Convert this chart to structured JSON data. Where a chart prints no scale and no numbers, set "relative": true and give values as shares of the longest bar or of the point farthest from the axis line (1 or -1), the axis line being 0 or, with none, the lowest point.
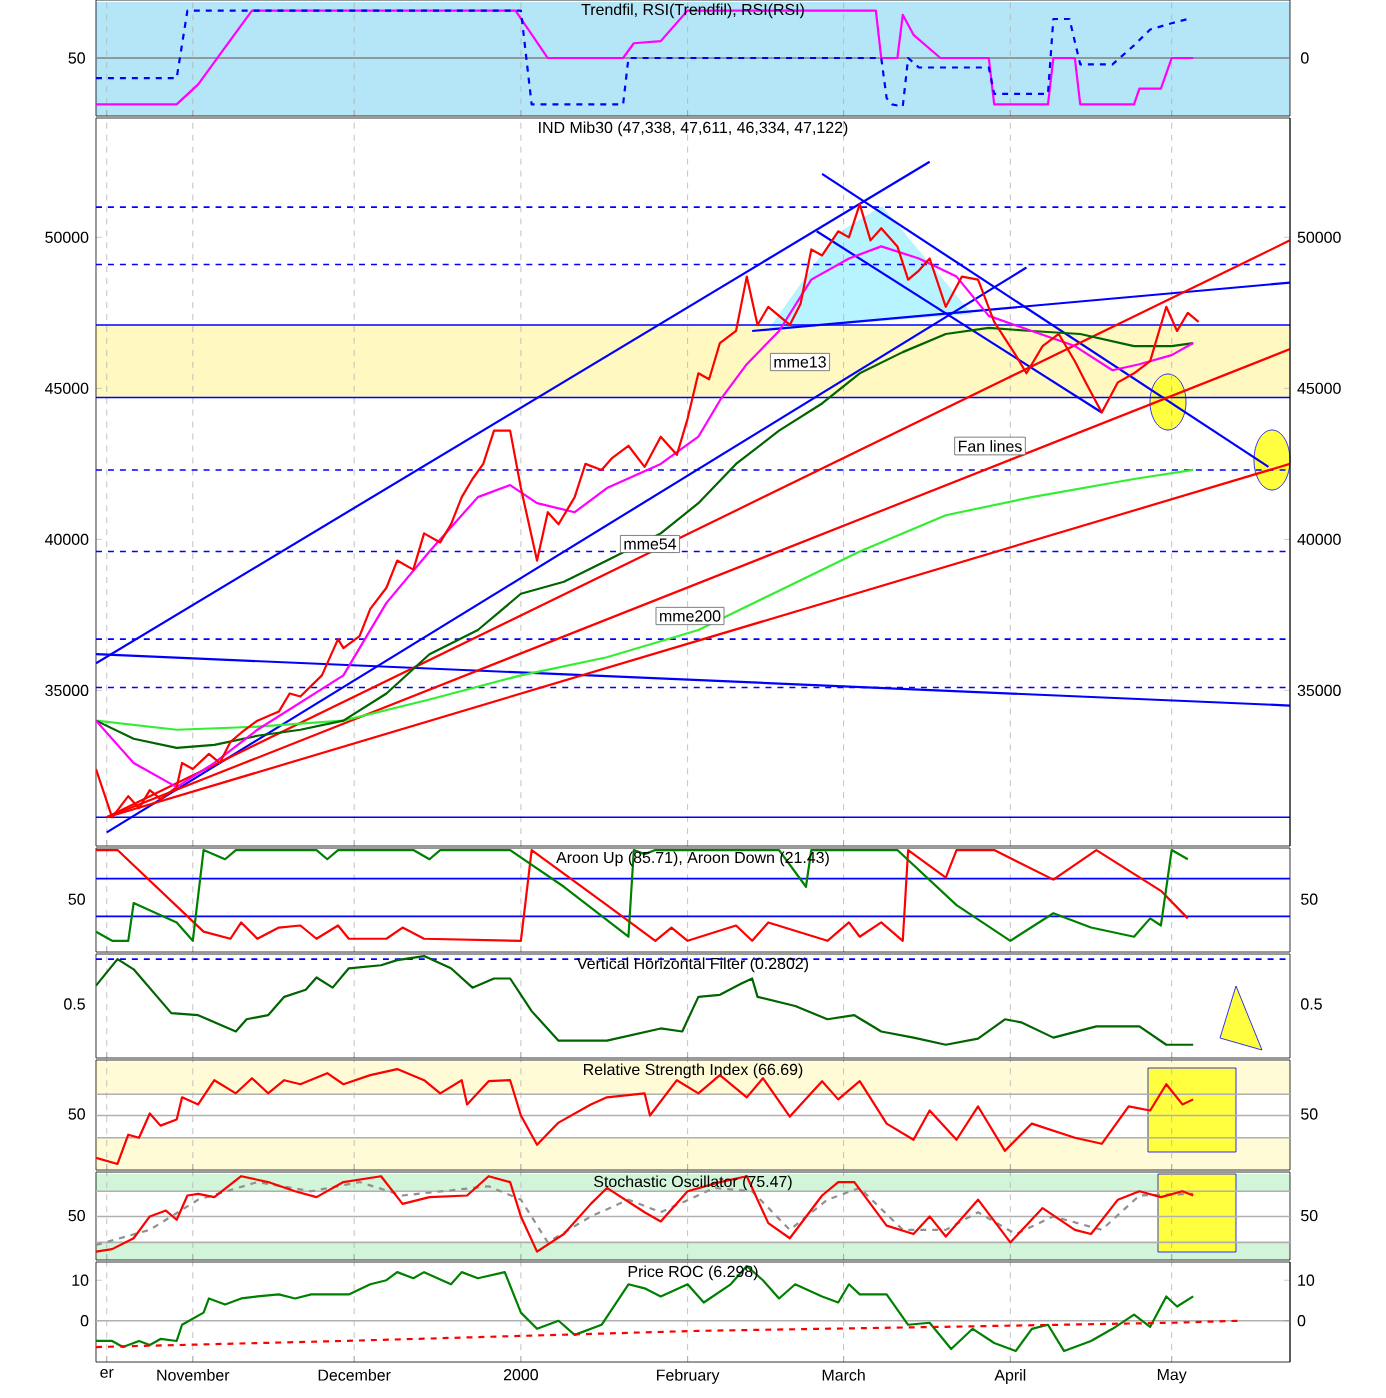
{
  "chart_data": [
    {
      "type": "line",
      "title": "Trendfil, RSI(Trendfil), RSI(RSI)",
      "relative": true,
      "tick_labels": false,
      "grid": "x",
      "xlim": [
        "1999-10-14",
        "2000-05-23"
      ],
      "xticks": [
        {
          "value": "1999-10-16",
          "label": null
        },
        {
          "value": "1999-11-01",
          "label": null
        },
        {
          "value": "1999-12-01",
          "label": null
        },
        {
          "value": "2000-01-01",
          "label": null
        },
        {
          "value": "2000-02-01",
          "label": null
        },
        {
          "value": "2000-03-01",
          "label": null
        },
        {
          "value": "2000-04-01",
          "label": null
        },
        {
          "value": "2000-05-01",
          "label": null
        }
      ],
      "bands": [
        {
          "axis": "y",
          "from": 0,
          "to": 1.08,
          "color": "#b4e6f8"
        }
      ],
      "ref_lines": [
        {
          "axis": "y",
          "value": 0.55,
          "color": "#808080"
        }
      ],
      "annotations": [
        "50",
        "0"
      ],
      "series": [
        {
          "color": "#ff00ff",
          "x": [
            "1999-10-14",
            "1999-10-29",
            "1999-11-02",
            "1999-11-07",
            "1999-11-12",
            "1999-12-31",
            "2000-01-06",
            "2000-01-20",
            "2000-01-22",
            "2000-01-27",
            "2000-02-01",
            "2000-03-07",
            "2000-03-08",
            "2000-03-11",
            "2000-03-12",
            "2000-03-14",
            "2000-03-19",
            "2000-03-28",
            "2000-03-29",
            "2000-04-08",
            "2000-04-09",
            "2000-04-13",
            "2000-04-14",
            "2000-04-24",
            "2000-04-25",
            "2000-04-29",
            "2000-05-01",
            "2000-05-05"
          ],
          "values": [
            0.11,
            0.11,
            0.3,
            0.65,
            1.0,
            1.0,
            0.55,
            0.55,
            0.69,
            0.71,
            1.0,
            1.0,
            0.55,
            0.55,
            0.96,
            0.77,
            0.55,
            0.55,
            0.11,
            0.11,
            0.55,
            0.55,
            0.11,
            0.11,
            0.26,
            0.26,
            0.55,
            0.55
          ]
        },
        {
          "color": "#0000ff",
          "line_style": "dashed",
          "x": [
            "1999-10-14",
            "1999-10-29",
            "1999-10-31",
            "2000-01-01",
            "2000-01-03",
            "2000-01-20",
            "2000-01-21",
            "2000-03-08",
            "2000-03-09",
            "2000-03-10",
            "2000-03-12",
            "2000-03-13",
            "2000-03-15",
            "2000-03-28",
            "2000-03-29",
            "2000-04-08",
            "2000-04-09",
            "2000-04-12",
            "2000-04-14",
            "2000-04-20",
            "2000-04-24",
            "2000-04-27",
            "2000-05-01",
            "2000-05-04"
          ],
          "values": [
            0.36,
            0.36,
            1.0,
            1.0,
            0.11,
            0.11,
            0.55,
            0.55,
            0.17,
            0.11,
            0.09,
            0.55,
            0.46,
            0.46,
            0.21,
            0.21,
            0.92,
            0.92,
            0.49,
            0.49,
            0.67,
            0.82,
            0.88,
            0.92
          ]
        }
      ]
    },
    {
      "type": "line",
      "title": "IND Mib30 (47,338, 47,611, 46,334, 47,122)",
      "tick_labels": "y",
      "grid": "x",
      "xlim": [
        "1999-10-14",
        "2000-05-23"
      ],
      "xticks": [
        {
          "value": "1999-10-16",
          "label": null
        },
        {
          "value": "1999-11-01",
          "label": null
        },
        {
          "value": "1999-12-01",
          "label": null
        },
        {
          "value": "2000-01-01",
          "label": null
        },
        {
          "value": "2000-02-01",
          "label": null
        },
        {
          "value": "2000-03-01",
          "label": null
        },
        {
          "value": "2000-04-01",
          "label": null
        },
        {
          "value": "2000-05-01",
          "label": null
        }
      ],
      "ylim": [
        29850,
        53950
      ],
      "yticks": [
        35000,
        40000,
        45000,
        50000
      ],
      "y2lim": [
        29850,
        53950
      ],
      "y2ticks": [
        35000,
        40000,
        45000,
        50000
      ],
      "bands": [
        {
          "axis": "y",
          "from": 44700,
          "to": 47100,
          "color": "#fff8c0"
        }
      ],
      "ref_lines": [
        {
          "axis": "y",
          "value": 51000,
          "color": "#0000ff",
          "line_style": "dashed"
        },
        {
          "axis": "y",
          "value": 49100,
          "color": "#0000ff",
          "line_style": "dashed"
        },
        {
          "axis": "y",
          "value": 42300,
          "color": "#0000ff",
          "line_style": "dashed"
        },
        {
          "axis": "y",
          "value": 39600,
          "color": "#0000ff",
          "line_style": "dashed"
        },
        {
          "axis": "y",
          "value": 36700,
          "color": "#0000ff",
          "line_style": "dashed"
        },
        {
          "axis": "y",
          "value": 35100,
          "color": "#0000ff",
          "line_style": "dashed"
        },
        {
          "axis": "y",
          "value": 47100,
          "color": "#0000ff"
        },
        {
          "axis": "y",
          "value": 44700,
          "color": "#0000ff"
        },
        {
          "axis": "y",
          "value": 30800,
          "color": "#0000ff"
        }
      ],
      "annotations": [
        "mme13",
        "mme54",
        "mme200",
        "Fan lines"
      ],
      "series": [
        {
          "color": "#0000ff",
          "x": [
            "1999-10-14",
            "2000-03-17"
          ],
          "values": [
            35900,
            52500
          ]
        },
        {
          "color": "#0000ff",
          "x": [
            "1999-10-16",
            "2000-04-04"
          ],
          "values": [
            30300,
            49000
          ]
        },
        {
          "color": "#0000ff",
          "x": [
            "2000-02-26",
            "2000-05-19"
          ],
          "values": [
            52100,
            42400
          ]
        },
        {
          "color": "#0000ff",
          "x": [
            "2000-02-25",
            "2000-04-18"
          ],
          "values": [
            50200,
            44200
          ]
        },
        {
          "color": "#0000ff",
          "x": [
            "1999-10-14",
            "2000-05-23"
          ],
          "values": [
            36200,
            34500
          ]
        },
        {
          "color": "#0000ff",
          "x": [
            "2000-02-13",
            "2000-05-23"
          ],
          "values": [
            46900,
            48500
          ]
        },
        {
          "color": "#ff0000",
          "x": [
            "1999-10-16",
            "2000-05-23"
          ],
          "values": [
            30800,
            49900
          ]
        },
        {
          "color": "#ff0000",
          "x": [
            "1999-10-16",
            "2000-05-23"
          ],
          "values": [
            30800,
            46300
          ]
        },
        {
          "color": "#ff0000",
          "x": [
            "1999-10-16",
            "2000-05-23"
          ],
          "values": [
            30800,
            42500
          ]
        },
        {
          "color": "#33ee33",
          "x": [
            "1999-10-14",
            "1999-10-29",
            "1999-11-13",
            "1999-11-29",
            "1999-12-15",
            "2000-01-01",
            "2000-01-17",
            "2000-02-03",
            "2000-02-18",
            "2000-03-04",
            "2000-03-20",
            "2000-04-05",
            "2000-04-24",
            "2000-05-05"
          ],
          "values": [
            34000,
            33700,
            33800,
            34000,
            34700,
            35500,
            36100,
            37000,
            38300,
            39600,
            40800,
            41400,
            42000,
            42300
          ]
        },
        {
          "color": "#006400",
          "x": [
            "1999-10-14",
            "1999-10-21",
            "1999-10-29",
            "1999-11-05",
            "1999-11-13",
            "1999-11-21",
            "1999-11-29",
            "1999-12-07",
            "1999-12-15",
            "1999-12-24",
            "2000-01-01",
            "2000-01-09",
            "2000-01-17",
            "2000-01-27",
            "2000-02-03",
            "2000-02-10",
            "2000-02-18",
            "2000-02-26",
            "2000-03-04",
            "2000-03-12",
            "2000-03-20",
            "2000-03-28",
            "2000-04-05",
            "2000-04-14",
            "2000-04-24",
            "2000-05-01",
            "2000-05-05"
          ],
          "values": [
            34000,
            33400,
            33100,
            33200,
            33500,
            33700,
            34000,
            34900,
            36200,
            37000,
            38200,
            38600,
            39300,
            40200,
            41200,
            42500,
            43600,
            44500,
            45500,
            46200,
            46800,
            47000,
            46900,
            46800,
            46400,
            46400,
            46500
          ]
        },
        {
          "color": "#ff00ff",
          "x": [
            "1999-10-14",
            "1999-10-21",
            "1999-10-29",
            "1999-11-05",
            "1999-11-13",
            "1999-11-29",
            "1999-12-07",
            "1999-12-15",
            "1999-12-24",
            "1999-12-30",
            "2000-01-04",
            "2000-01-11",
            "2000-01-17",
            "2000-01-27",
            "2000-02-03",
            "2000-02-07",
            "2000-02-12",
            "2000-02-18",
            "2000-02-24",
            "2000-03-02",
            "2000-03-08",
            "2000-03-15",
            "2000-03-22",
            "2000-03-28",
            "2000-04-05",
            "2000-04-13",
            "2000-04-20",
            "2000-04-25",
            "2000-05-01",
            "2000-05-05"
          ],
          "values": [
            34000,
            32600,
            31800,
            32600,
            33700,
            35500,
            37900,
            39600,
            41400,
            41800,
            41200,
            40900,
            41700,
            42500,
            43400,
            44600,
            45800,
            46900,
            48600,
            49300,
            49700,
            49300,
            48700,
            47400,
            46900,
            46400,
            45600,
            45800,
            46100,
            46500
          ]
        },
        {
          "color": "#ff0000",
          "x": [
            "1999-10-14",
            "1999-10-17",
            "1999-10-20",
            "1999-10-22",
            "1999-10-24",
            "1999-10-26",
            "1999-10-29",
            "1999-10-30",
            "1999-11-01",
            "1999-11-04",
            "1999-11-06",
            "1999-11-08",
            "1999-11-10",
            "1999-11-13",
            "1999-11-17",
            "1999-11-19",
            "1999-11-21",
            "1999-11-25",
            "1999-11-28",
            "1999-11-29",
            "1999-12-02",
            "1999-12-04",
            "1999-12-07",
            "1999-12-09",
            "1999-12-12",
            "1999-12-14",
            "1999-12-17",
            "1999-12-19",
            "1999-12-21",
            "1999-12-23",
            "1999-12-25",
            "1999-12-27",
            "1999-12-30",
            "2000-01-01",
            "2000-01-04",
            "2000-01-06",
            "2000-01-08",
            "2000-01-11",
            "2000-01-13",
            "2000-01-16",
            "2000-01-18",
            "2000-01-21",
            "2000-01-24",
            "2000-01-27",
            "2000-01-30",
            "2000-02-01",
            "2000-02-03",
            "2000-02-05",
            "2000-02-07",
            "2000-02-10",
            "2000-02-12",
            "2000-02-14",
            "2000-02-16",
            "2000-02-20",
            "2000-02-22",
            "2000-02-24",
            "2000-02-26",
            "2000-02-29",
            "2000-03-02",
            "2000-03-04",
            "2000-03-06",
            "2000-03-08",
            "2000-03-11",
            "2000-03-13",
            "2000-03-15",
            "2000-03-17",
            "2000-03-20",
            "2000-03-23",
            "2000-03-26",
            "2000-03-29",
            "2000-04-02",
            "2000-04-04",
            "2000-04-07",
            "2000-04-10",
            "2000-04-13",
            "2000-04-15",
            "2000-04-18",
            "2000-04-21",
            "2000-04-24",
            "2000-04-27",
            "2000-04-30",
            "2000-05-02",
            "2000-05-04",
            "2000-05-06"
          ],
          "values": [
            32400,
            30800,
            31500,
            31100,
            31700,
            31400,
            31800,
            32600,
            32400,
            32900,
            32600,
            33300,
            33600,
            34000,
            34300,
            34900,
            34800,
            35500,
            36700,
            36400,
            36800,
            37700,
            38400,
            39300,
            39000,
            40200,
            39900,
            40500,
            41400,
            42000,
            42500,
            43600,
            43600,
            41700,
            39300,
            40900,
            40500,
            41400,
            42500,
            42300,
            42700,
            43100,
            42400,
            43400,
            42800,
            44000,
            45500,
            45300,
            46500,
            46900,
            48700,
            47100,
            47700,
            47100,
            47800,
            49600,
            49400,
            50200,
            50000,
            51100,
            49900,
            50300,
            49700,
            48600,
            48900,
            49300,
            47700,
            48700,
            48600,
            47200,
            46100,
            45500,
            46400,
            46800,
            45900,
            45200,
            44200,
            45200,
            45500,
            45900,
            47700,
            46900,
            47500,
            47200
          ]
        }
      ]
    },
    {
      "type": "line",
      "title": "Aroon Up (85.71), Aroon Down (21.43)",
      "relative": true,
      "tick_labels": false,
      "grid": "x",
      "xlim": [
        "1999-10-14",
        "2000-05-23"
      ],
      "xticks": [
        {
          "value": "1999-10-16",
          "label": null
        },
        {
          "value": "1999-11-01",
          "label": null
        },
        {
          "value": "1999-12-01",
          "label": null
        },
        {
          "value": "2000-01-01",
          "label": null
        },
        {
          "value": "2000-02-01",
          "label": null
        },
        {
          "value": "2000-03-01",
          "label": null
        },
        {
          "value": "2000-04-01",
          "label": null
        },
        {
          "value": "2000-05-01",
          "label": null
        }
      ],
      "ref_lines": [
        {
          "axis": "y",
          "value": 0.72,
          "color": "#0000ff"
        },
        {
          "axis": "y",
          "value": 0.35,
          "color": "#0000ff"
        }
      ],
      "annotations": [
        "50",
        "50"
      ],
      "series": [
        {
          "color": "#ff0000",
          "x": [
            "1999-10-14",
            "1999-10-18",
            "1999-11-03",
            "1999-11-08",
            "1999-11-10",
            "1999-11-13",
            "1999-11-17",
            "1999-11-21",
            "1999-11-24",
            "1999-11-28",
            "1999-11-30",
            "1999-12-07",
            "1999-12-10",
            "1999-12-14",
            "2000-01-01",
            "2000-01-03",
            "2000-01-17",
            "2000-01-26",
            "2000-01-29",
            "2000-02-01",
            "2000-02-10",
            "2000-02-13",
            "2000-02-16",
            "2000-02-27",
            "2000-03-02",
            "2000-03-04",
            "2000-03-08",
            "2000-03-12",
            "2000-03-13",
            "2000-03-20",
            "2000-03-22",
            "2000-03-29",
            "2000-04-09",
            "2000-04-17",
            "2000-04-29",
            "2000-05-04"
          ],
          "values": [
            1.0,
            1.0,
            0.2,
            0.13,
            0.29,
            0.13,
            0.24,
            0.26,
            0.13,
            0.26,
            0.13,
            0.13,
            0.24,
            0.13,
            0.11,
            1.0,
            0.46,
            0.11,
            0.24,
            0.11,
            0.26,
            0.11,
            0.29,
            0.11,
            0.29,
            0.15,
            0.29,
            0.11,
            1.0,
            0.73,
            1.0,
            1.0,
            0.71,
            1.0,
            0.6,
            0.33
          ]
        },
        {
          "color": "#008000",
          "x": [
            "1999-10-14",
            "1999-10-17",
            "1999-10-20",
            "1999-10-21",
            "1999-10-29",
            "1999-11-01",
            "1999-11-03",
            "1999-11-07",
            "1999-11-09",
            "1999-11-24",
            "1999-11-26",
            "1999-11-28",
            "1999-12-12",
            "1999-12-15",
            "1999-12-17",
            "1999-12-30",
            "2000-01-09",
            "2000-01-21",
            "2000-01-22",
            "2000-01-24",
            "2000-01-26",
            "2000-02-18",
            "2000-02-23",
            "2000-02-24",
            "2000-03-11",
            "2000-03-22",
            "2000-04-01",
            "2000-04-09",
            "2000-04-16",
            "2000-04-24",
            "2000-04-27",
            "2000-04-29",
            "2000-05-01",
            "2000-05-04"
          ],
          "values": [
            0.2,
            0.11,
            0.11,
            0.48,
            0.29,
            0.11,
            1.0,
            0.91,
            1.0,
            1.0,
            0.91,
            1.0,
            1.0,
            0.91,
            1.0,
            1.0,
            0.64,
            0.15,
            1.0,
            0.96,
            1.0,
            1.0,
            0.64,
            1.0,
            1.0,
            0.46,
            0.11,
            0.38,
            0.24,
            0.15,
            0.33,
            0.26,
            1.0,
            0.91
          ]
        }
      ]
    },
    {
      "type": "line",
      "title": "Vertical Horizontal Filter (0.2802)",
      "relative": true,
      "tick_labels": false,
      "grid": "x",
      "xlim": [
        "1999-10-14",
        "2000-05-23"
      ],
      "xticks": [
        {
          "value": "1999-10-16",
          "label": null
        },
        {
          "value": "1999-11-01",
          "label": null
        },
        {
          "value": "1999-12-01",
          "label": null
        },
        {
          "value": "2000-01-01",
          "label": null
        },
        {
          "value": "2000-02-01",
          "label": null
        },
        {
          "value": "2000-03-01",
          "label": null
        },
        {
          "value": "2000-04-01",
          "label": null
        },
        {
          "value": "2000-05-01",
          "label": null
        }
      ],
      "ref_lines": [
        {
          "axis": "y",
          "value": 0.97,
          "color": "#0000ff",
          "line_style": "dashed"
        }
      ],
      "annotations": [
        "0.5",
        "0.5"
      ],
      "series": [
        {
          "color": "#006400",
          "x": [
            "1999-10-14",
            "1999-10-18",
            "1999-10-21",
            "1999-10-28",
            "1999-11-02",
            "1999-11-09",
            "1999-11-11",
            "1999-11-15",
            "1999-11-18",
            "1999-11-22",
            "1999-11-24",
            "1999-11-27",
            "1999-11-30",
            "1999-12-06",
            "1999-12-09",
            "1999-12-14",
            "1999-12-19",
            "1999-12-23",
            "1999-12-27",
            "1999-12-30",
            "2000-01-03",
            "2000-01-08",
            "2000-01-17",
            "2000-01-27",
            "2000-01-31",
            "2000-02-03",
            "2000-02-07",
            "2000-02-11",
            "2000-02-13",
            "2000-02-14",
            "2000-02-21",
            "2000-02-27",
            "2000-03-03",
            "2000-03-08",
            "2000-03-14",
            "2000-03-20",
            "2000-03-26",
            "2000-03-31",
            "2000-04-03",
            "2000-04-09",
            "2000-04-17",
            "2000-04-25",
            "2000-04-30",
            "2000-05-05"
          ],
          "values": [
            0.71,
            0.97,
            0.87,
            0.44,
            0.42,
            0.26,
            0.38,
            0.42,
            0.6,
            0.67,
            0.79,
            0.69,
            0.88,
            0.91,
            0.96,
            1.0,
            0.88,
            0.69,
            0.78,
            0.78,
            0.46,
            0.17,
            0.17,
            0.29,
            0.26,
            0.6,
            0.62,
            0.73,
            0.78,
            0.6,
            0.51,
            0.38,
            0.42,
            0.26,
            0.2,
            0.13,
            0.19,
            0.38,
            0.35,
            0.2,
            0.31,
            0.31,
            0.13,
            0.13
          ]
        }
      ]
    },
    {
      "type": "line",
      "title": "Relative Strength Index (66.69)",
      "relative": true,
      "tick_labels": false,
      "grid": "x",
      "xlim": [
        "1999-10-14",
        "2000-05-23"
      ],
      "xticks": [
        {
          "value": "1999-10-16",
          "label": null
        },
        {
          "value": "1999-11-01",
          "label": null
        },
        {
          "value": "1999-12-01",
          "label": null
        },
        {
          "value": "2000-01-01",
          "label": null
        },
        {
          "value": "2000-02-01",
          "label": null
        },
        {
          "value": "2000-03-01",
          "label": null
        },
        {
          "value": "2000-04-01",
          "label": null
        },
        {
          "value": "2000-05-01",
          "label": null
        }
      ],
      "bands": [
        {
          "axis": "y",
          "from": 0.75,
          "to": 1.07,
          "color": "#fffbd6"
        },
        {
          "axis": "y",
          "from": 0,
          "to": 0.32,
          "color": "#fffbd6"
        }
      ],
      "ref_lines": [
        {
          "axis": "y",
          "value": 0.75,
          "color": "#b0b0b0"
        },
        {
          "axis": "y",
          "value": 0.32,
          "color": "#b0b0b0"
        },
        {
          "axis": "y",
          "value": 0.54,
          "color": "#b0b0b0"
        }
      ],
      "annotations": [
        "50",
        "50"
      ],
      "series": [
        {
          "color": "#ff0000",
          "x": [
            "1999-10-14",
            "1999-10-18",
            "1999-10-20",
            "1999-10-22",
            "1999-10-24",
            "1999-10-26",
            "1999-10-29",
            "1999-10-30",
            "1999-11-02",
            "1999-11-05",
            "1999-11-09",
            "1999-11-12",
            "1999-11-15",
            "1999-11-18",
            "1999-11-21",
            "1999-11-26",
            "1999-11-29",
            "1999-12-04",
            "1999-12-09",
            "1999-12-14",
            "1999-12-17",
            "1999-12-21",
            "1999-12-22",
            "1999-12-26",
            "1999-12-30",
            "2000-01-01",
            "2000-01-04",
            "2000-01-08",
            "2000-01-14",
            "2000-01-17",
            "2000-01-24",
            "2000-01-25",
            "2000-01-30",
            "2000-02-03",
            "2000-02-07",
            "2000-02-12",
            "2000-02-15",
            "2000-02-20",
            "2000-02-26",
            "2000-02-29",
            "2000-03-04",
            "2000-03-09",
            "2000-03-14",
            "2000-03-17",
            "2000-03-22",
            "2000-03-26",
            "2000-03-31",
            "2000-04-05",
            "2000-04-13",
            "2000-04-18",
            "2000-04-23",
            "2000-04-27",
            "2000-04-30",
            "2000-05-03",
            "2000-05-05"
          ],
          "values": [
            0.12,
            0.06,
            0.35,
            0.32,
            0.56,
            0.44,
            0.5,
            0.72,
            0.65,
            0.89,
            0.76,
            0.91,
            0.76,
            0.89,
            0.85,
            0.96,
            0.85,
            0.94,
            1.0,
            0.89,
            0.76,
            0.89,
            0.65,
            0.88,
            0.89,
            0.54,
            0.25,
            0.47,
            0.65,
            0.72,
            0.76,
            0.54,
            0.89,
            0.76,
            0.94,
            0.72,
            0.91,
            0.53,
            0.88,
            0.7,
            0.88,
            0.46,
            0.3,
            0.59,
            0.3,
            0.63,
            0.19,
            0.46,
            0.32,
            0.26,
            0.63,
            0.59,
            0.85,
            0.65,
            0.7
          ]
        }
      ]
    },
    {
      "type": "line",
      "title": "Stochastic Oscillator (75.47)",
      "relative": true,
      "tick_labels": false,
      "grid": "x",
      "xlim": [
        "1999-10-14",
        "2000-05-23"
      ],
      "xticks": [
        {
          "value": "1999-10-16",
          "label": null
        },
        {
          "value": "1999-11-01",
          "label": null
        },
        {
          "value": "1999-12-01",
          "label": null
        },
        {
          "value": "2000-01-01",
          "label": null
        },
        {
          "value": "2000-02-01",
          "label": null
        },
        {
          "value": "2000-03-01",
          "label": null
        },
        {
          "value": "2000-04-01",
          "label": null
        },
        {
          "value": "2000-05-01",
          "label": null
        }
      ],
      "bands": [
        {
          "axis": "y",
          "from": 0.82,
          "to": 1.03,
          "color": "#d2f5da"
        },
        {
          "axis": "y",
          "from": 0,
          "to": 0.21,
          "color": "#d2f5da"
        }
      ],
      "ref_lines": [
        {
          "axis": "y",
          "value": 0.82,
          "color": "#b0b0b0"
        },
        {
          "axis": "y",
          "value": 0.21,
          "color": "#b0b0b0"
        },
        {
          "axis": "y",
          "value": 0.52,
          "color": "#b0b0b0"
        }
      ],
      "annotations": [
        "50",
        "50"
      ],
      "series": [
        {
          "color": "#909090",
          "line_style": "dashed",
          "x": [
            "1999-10-14",
            "1999-10-24",
            "1999-11-02",
            "1999-11-13",
            "1999-11-23",
            "1999-12-02",
            "1999-12-10",
            "1999-12-26",
            "2000-01-01",
            "2000-01-06",
            "2000-01-14",
            "2000-01-21",
            "2000-01-27",
            "2000-02-06",
            "2000-02-13",
            "2000-02-20",
            "2000-02-27",
            "2000-03-04",
            "2000-03-12",
            "2000-03-20",
            "2000-03-26",
            "2000-04-02",
            "2000-04-09",
            "2000-04-18",
            "2000-04-25",
            "2000-05-05"
          ],
          "values": [
            0.18,
            0.36,
            0.72,
            0.93,
            0.82,
            0.93,
            0.77,
            0.88,
            0.72,
            0.21,
            0.52,
            0.72,
            0.57,
            0.86,
            0.82,
            0.36,
            0.72,
            0.86,
            0.36,
            0.36,
            0.57,
            0.31,
            0.52,
            0.36,
            0.77,
            0.79
          ]
        },
        {
          "color": "#ff0000",
          "x": [
            "1999-10-14",
            "1999-10-17",
            "1999-10-21",
            "1999-10-24",
            "1999-10-27",
            "1999-10-29",
            "1999-10-31",
            "1999-11-02",
            "1999-11-05",
            "1999-11-10",
            "1999-11-15",
            "1999-11-20",
            "1999-11-24",
            "1999-11-29",
            "1999-12-06",
            "1999-12-10",
            "1999-12-15",
            "1999-12-22",
            "1999-12-26",
            "1999-12-30",
            "2000-01-01",
            "2000-01-04",
            "2000-01-09",
            "2000-01-14",
            "2000-01-17",
            "2000-01-24",
            "2000-01-27",
            "2000-02-01",
            "2000-02-07",
            "2000-02-12",
            "2000-02-16",
            "2000-02-20",
            "2000-02-26",
            "2000-02-29",
            "2000-03-03",
            "2000-03-09",
            "2000-03-14",
            "2000-03-17",
            "2000-03-20",
            "2000-03-26",
            "2000-04-01",
            "2000-04-07",
            "2000-04-13",
            "2000-04-16",
            "2000-04-21",
            "2000-04-25",
            "2000-04-29",
            "2000-05-03",
            "2000-05-05"
          ],
          "values": [
            0.1,
            0.13,
            0.26,
            0.52,
            0.59,
            0.48,
            0.77,
            0.79,
            0.75,
            1.0,
            0.93,
            0.82,
            0.75,
            0.93,
            1.0,
            0.67,
            0.75,
            0.77,
            1.0,
            0.93,
            0.52,
            0.1,
            0.31,
            0.67,
            0.86,
            0.57,
            0.46,
            0.82,
            0.93,
            1.0,
            0.44,
            0.26,
            0.77,
            0.93,
            0.93,
            0.41,
            0.31,
            0.52,
            0.28,
            0.72,
            0.21,
            0.62,
            0.36,
            0.31,
            0.72,
            0.82,
            0.75,
            0.82,
            0.77
          ]
        }
      ]
    },
    {
      "type": "line",
      "title": "Price ROC (6.298)",
      "grid": "x",
      "xlim": [
        "1999-10-14",
        "2000-05-23"
      ],
      "xticks": [
        {
          "value": "1999-10-16",
          "label": "er"
        },
        {
          "value": "1999-11-01",
          "label": "November"
        },
        {
          "value": "1999-12-01",
          "label": "December"
        },
        {
          "value": "2000-01-01",
          "label": "2000"
        },
        {
          "value": "2000-02-01",
          "label": "February"
        },
        {
          "value": "2000-03-01",
          "label": "March"
        },
        {
          "value": "2000-04-01",
          "label": "April"
        },
        {
          "value": "2000-05-01",
          "label": "May"
        }
      ],
      "ylim": [
        -10.2,
        14.5
      ],
      "yticks": [
        0,
        10
      ],
      "y2lim": [
        -10.2,
        14.5
      ],
      "y2ticks": [
        0,
        10
      ],
      "ref_lines": [
        {
          "axis": "y",
          "value": 0,
          "color": "#b0b0b0"
        }
      ],
      "series": [
        {
          "color": "#008000",
          "x": [
            "1999-10-14",
            "1999-10-17",
            "1999-10-19",
            "1999-10-22",
            "1999-10-24",
            "1999-10-26",
            "1999-10-29",
            "1999-10-30",
            "1999-11-01",
            "1999-11-03",
            "1999-11-04",
            "1999-11-07",
            "1999-11-10",
            "1999-11-13",
            "1999-11-17",
            "1999-11-20",
            "1999-11-23",
            "1999-11-29",
            "1999-11-30",
            "1999-12-04",
            "1999-12-07",
            "1999-12-09",
            "1999-12-12",
            "1999-12-14",
            "1999-12-19",
            "1999-12-21",
            "1999-12-24",
            "1999-12-29",
            "2000-01-01",
            "2000-01-04",
            "2000-01-08",
            "2000-01-11",
            "2000-01-16",
            "2000-01-21",
            "2000-01-24",
            "2000-01-27",
            "2000-02-01",
            "2000-02-04",
            "2000-02-09",
            "2000-02-12",
            "2000-02-15",
            "2000-02-18",
            "2000-02-21",
            "2000-02-26",
            "2000-02-29",
            "2000-03-02",
            "2000-03-04",
            "2000-03-09",
            "2000-03-13",
            "2000-03-17",
            "2000-03-21",
            "2000-03-25",
            "2000-03-29",
            "2000-04-02",
            "2000-04-05",
            "2000-04-08",
            "2000-04-11",
            "2000-04-16",
            "2000-04-20",
            "2000-04-24",
            "2000-04-27",
            "2000-04-30",
            "2000-05-02",
            "2000-05-05"
          ],
          "values": [
            -5,
            -5,
            -6.5,
            -5,
            -6,
            -4.5,
            -5,
            -1,
            0.5,
            2,
            5.5,
            4,
            5.5,
            6,
            6.5,
            5.5,
            6.5,
            6.5,
            6.5,
            9,
            10,
            12,
            10.5,
            12,
            9,
            12,
            10.5,
            12,
            2,
            -2,
            0,
            -3.5,
            -1,
            9,
            8,
            6,
            9,
            4.5,
            9,
            13.5,
            10,
            5.5,
            9,
            6,
            4.5,
            9,
            6.5,
            6.5,
            -1,
            -0.5,
            -7,
            -2,
            -5.5,
            -7.5,
            -2,
            -1,
            -7.5,
            -5,
            -2,
            1.5,
            -1.5,
            6,
            3.5,
            6
          ]
        },
        {
          "color": "#ff0000",
          "line_style": "dashed",
          "x": [
            "1999-10-14",
            "1999-11-29",
            "2000-02-03",
            "2000-03-20",
            "2000-05-01",
            "2000-05-14"
          ],
          "values": [
            -6.5,
            -5,
            -2.5,
            -1.5,
            -0.5,
            0
          ]
        }
      ]
    }
  ]
}
